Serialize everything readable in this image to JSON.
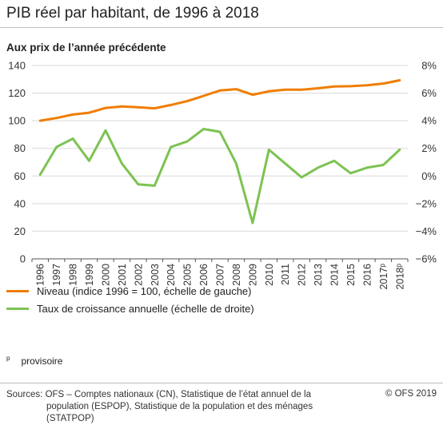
{
  "header": {
    "title": "PIB réel par habitant, de 1996 à 2018",
    "subtitle": "Aux prix de l’année précédente"
  },
  "legend": [
    {
      "label": "Niveau (indice 1996 = 100, échelle de gauche)",
      "color": "#f07d00"
    },
    {
      "label": "Taux de croissance annuelle (échelle de droite)",
      "color": "#7cc352"
    }
  ],
  "note": {
    "marker": "p",
    "text": "provisoire"
  },
  "footer": {
    "source_line1": "Sources: OFS – Comptes nationaux (CN), Statistique de l’état annuel de la",
    "source_line2": "population (ESPOP), Statistique de la population et des ménages (STATPOP)",
    "copyright": "© OFS 2019"
  },
  "chart_data": {
    "type": "line",
    "categories": [
      "1996",
      "1997",
      "1998",
      "1999",
      "2000",
      "2001",
      "2002",
      "2003",
      "2004",
      "2005",
      "2006",
      "2007",
      "2008",
      "2009",
      "2010",
      "2011",
      "2012",
      "2013",
      "2014",
      "2015",
      "2016",
      "2017ᵖ",
      "2018ᵖ"
    ],
    "left_axis": {
      "ylim": [
        0,
        140
      ],
      "ticks": [
        "0",
        "20",
        "40",
        "60",
        "80",
        "100",
        "120",
        "140"
      ]
    },
    "right_axis": {
      "ylim": [
        -6,
        8
      ],
      "ticks": [
        "−6%",
        "−4%",
        "−2%",
        "0%",
        "2%",
        "4%",
        "6%",
        "8%"
      ]
    },
    "grid": true,
    "series": [
      {
        "name": "Niveau (indice 1996 = 100, échelle de gauche)",
        "axis": "left",
        "color": "#f07d00",
        "values": [
          100,
          102,
          104.5,
          105.8,
          109.3,
          110.3,
          109.8,
          109.0,
          111.4,
          114.2,
          118.0,
          121.9,
          122.9,
          118.8,
          121.3,
          122.5,
          122.5,
          123.5,
          124.8,
          125.0,
          125.7,
          126.9,
          129.3
        ]
      },
      {
        "name": "Taux de croissance annuelle (échelle de droite)",
        "axis": "right",
        "color": "#7cc352",
        "values": [
          0.1,
          2.1,
          2.7,
          1.1,
          3.3,
          0.9,
          -0.6,
          -0.7,
          2.1,
          2.5,
          3.4,
          3.2,
          0.9,
          -3.4,
          1.9,
          0.9,
          -0.1,
          0.6,
          1.1,
          0.2,
          0.6,
          0.8,
          1.9
        ]
      }
    ]
  }
}
